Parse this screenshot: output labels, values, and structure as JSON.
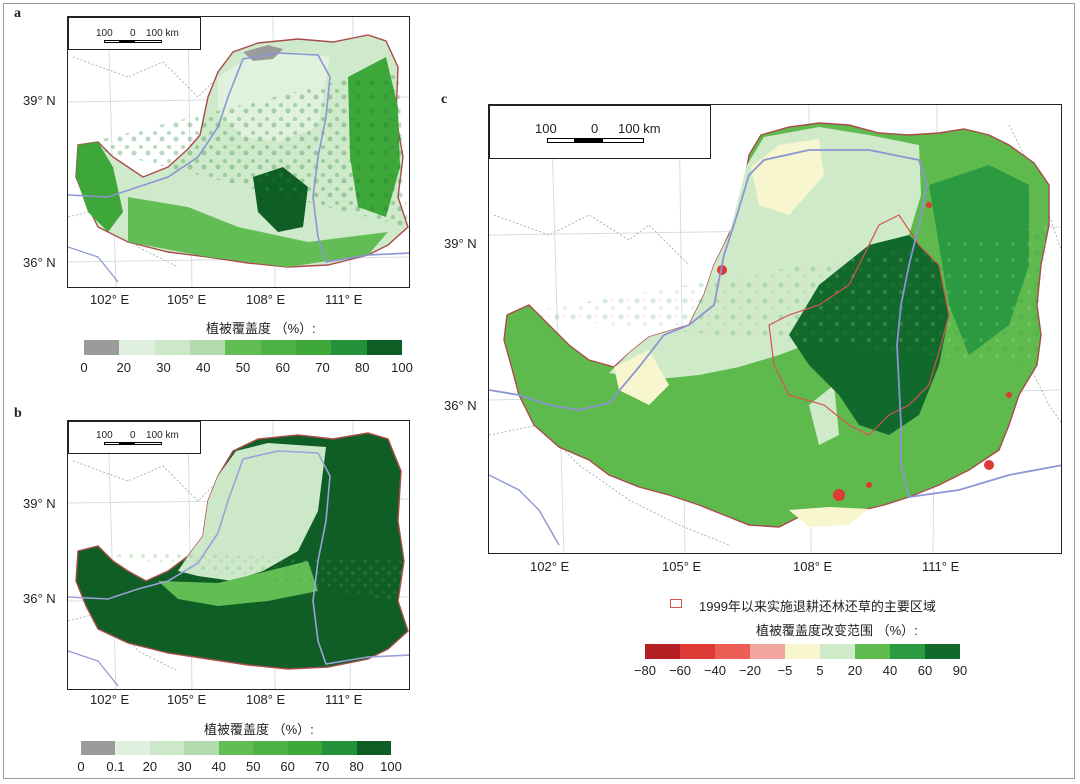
{
  "panels": {
    "a": {
      "letter": "a",
      "scale": {
        "left": "100",
        "mid": "0",
        "right": "100 km"
      },
      "lat": [
        "39° N",
        "36° N"
      ],
      "lon": [
        "102° E",
        "105° E",
        "108° E",
        "111° E"
      ],
      "legend_title": "植被覆盖度 （%）:",
      "legend_colors": [
        "#9b9b9b",
        "#dff1de",
        "#cce8c9",
        "#b3dcae",
        "#62bd55",
        "#4fb244",
        "#3ea73a",
        "#23923a",
        "#0f5e25"
      ],
      "legend_ticks": [
        "0",
        "20",
        "30",
        "40",
        "50",
        "60",
        "70",
        "80",
        "100"
      ]
    },
    "b": {
      "letter": "b",
      "scale": {
        "left": "100",
        "mid": "0",
        "right": "100 km"
      },
      "lat": [
        "39° N",
        "36° N"
      ],
      "lon": [
        "102° E",
        "105° E",
        "108° E",
        "111° E"
      ],
      "legend_title": "植被覆盖度 （%）:",
      "legend_colors": [
        "#9b9b9b",
        "#dff1de",
        "#cce8c9",
        "#b3dcae",
        "#62bd55",
        "#4fb244",
        "#3ea73a",
        "#23923a",
        "#0f5e25"
      ],
      "legend_ticks": [
        "0",
        "0.1",
        "20",
        "30",
        "40",
        "50",
        "60",
        "70",
        "80",
        "100"
      ]
    },
    "c": {
      "letter": "c",
      "scale": {
        "left": "100",
        "mid": "0",
        "right": "100 km"
      },
      "lat": [
        "39° N",
        "36° N"
      ],
      "lon": [
        "102° E",
        "105° E",
        "108° E",
        "111° E"
      ],
      "region_key_label": "1999年以来实施退耕还林还草的主要区域",
      "legend_title": "植被覆盖度改变范围 （%）:",
      "legend_colors": [
        "#b41f23",
        "#dd3a34",
        "#ec5e55",
        "#f3a6a0",
        "#f8f6cf",
        "#cfeac9",
        "#5fba4e",
        "#2b9a40",
        "#11692b"
      ],
      "legend_ticks": [
        "−80",
        "−60",
        "−40",
        "−20",
        "−5",
        "5",
        "20",
        "40",
        "60",
        "90"
      ]
    }
  }
}
